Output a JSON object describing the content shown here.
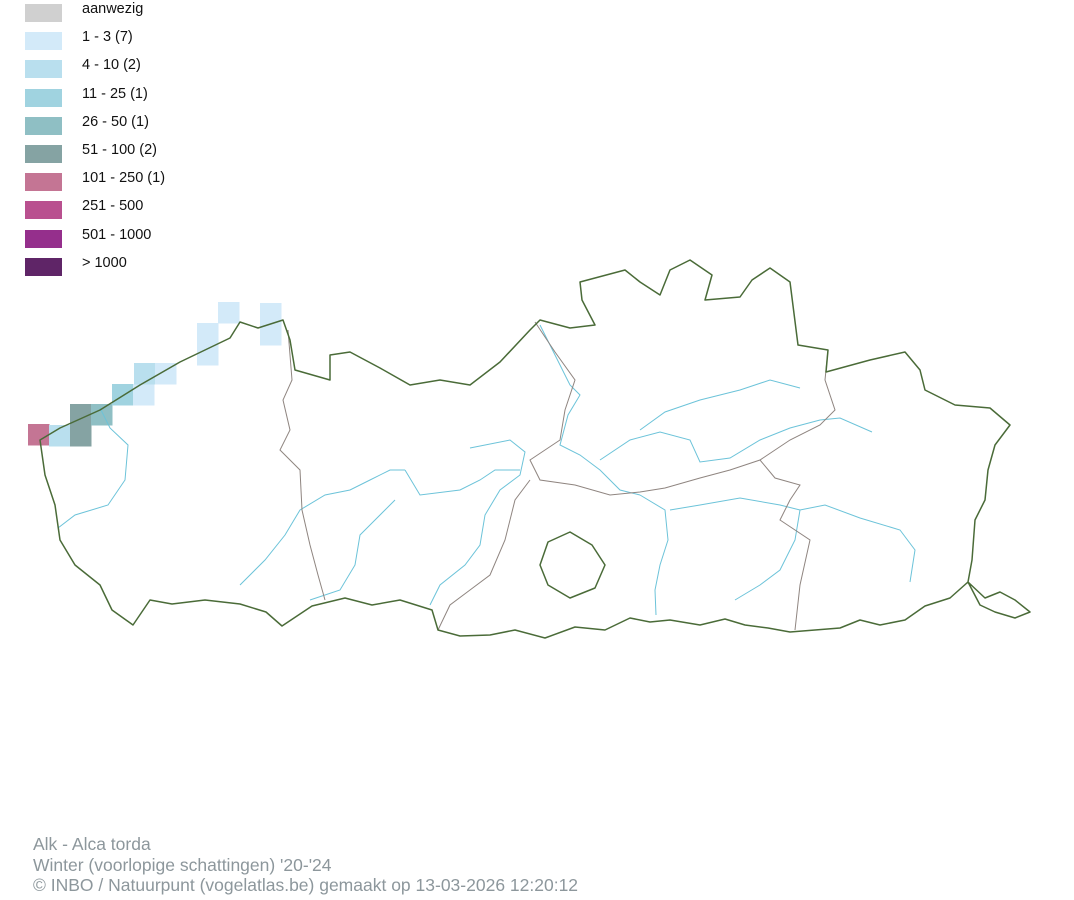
{
  "legend": [
    {
      "label": "aanwezig",
      "color": "#d0d0d0"
    },
    {
      "label": "1 - 3 (7)",
      "color": "#d3eaf9"
    },
    {
      "label": "4 - 10 (2)",
      "color": "#b9dfee"
    },
    {
      "label": "11 - 25 (1)",
      "color": "#a0d3e0"
    },
    {
      "label": "26 - 50 (1)",
      "color": "#8fbfc4"
    },
    {
      "label": "51 - 100 (2)",
      "color": "#85a3a3"
    },
    {
      "label": "101 - 250 (1)",
      "color": "#c47594"
    },
    {
      "label": "251 - 500",
      "color": "#b9508f"
    },
    {
      "label": "501 - 1000",
      "color": "#952f8c"
    },
    {
      "label": "> 1000",
      "color": "#5f2567"
    }
  ],
  "map_colors": {
    "outline": "#4a6b38",
    "province_border": "#8f8580",
    "river": "#6cc3d9"
  },
  "footer": {
    "species": "Alk - Alca torda",
    "season": "Winter (voorlopige schattingen) '20-'24",
    "credit": "© INBO / Natuurpunt (vogelatlas.be) gemaakt op 13-03-2026 12:20:12"
  }
}
